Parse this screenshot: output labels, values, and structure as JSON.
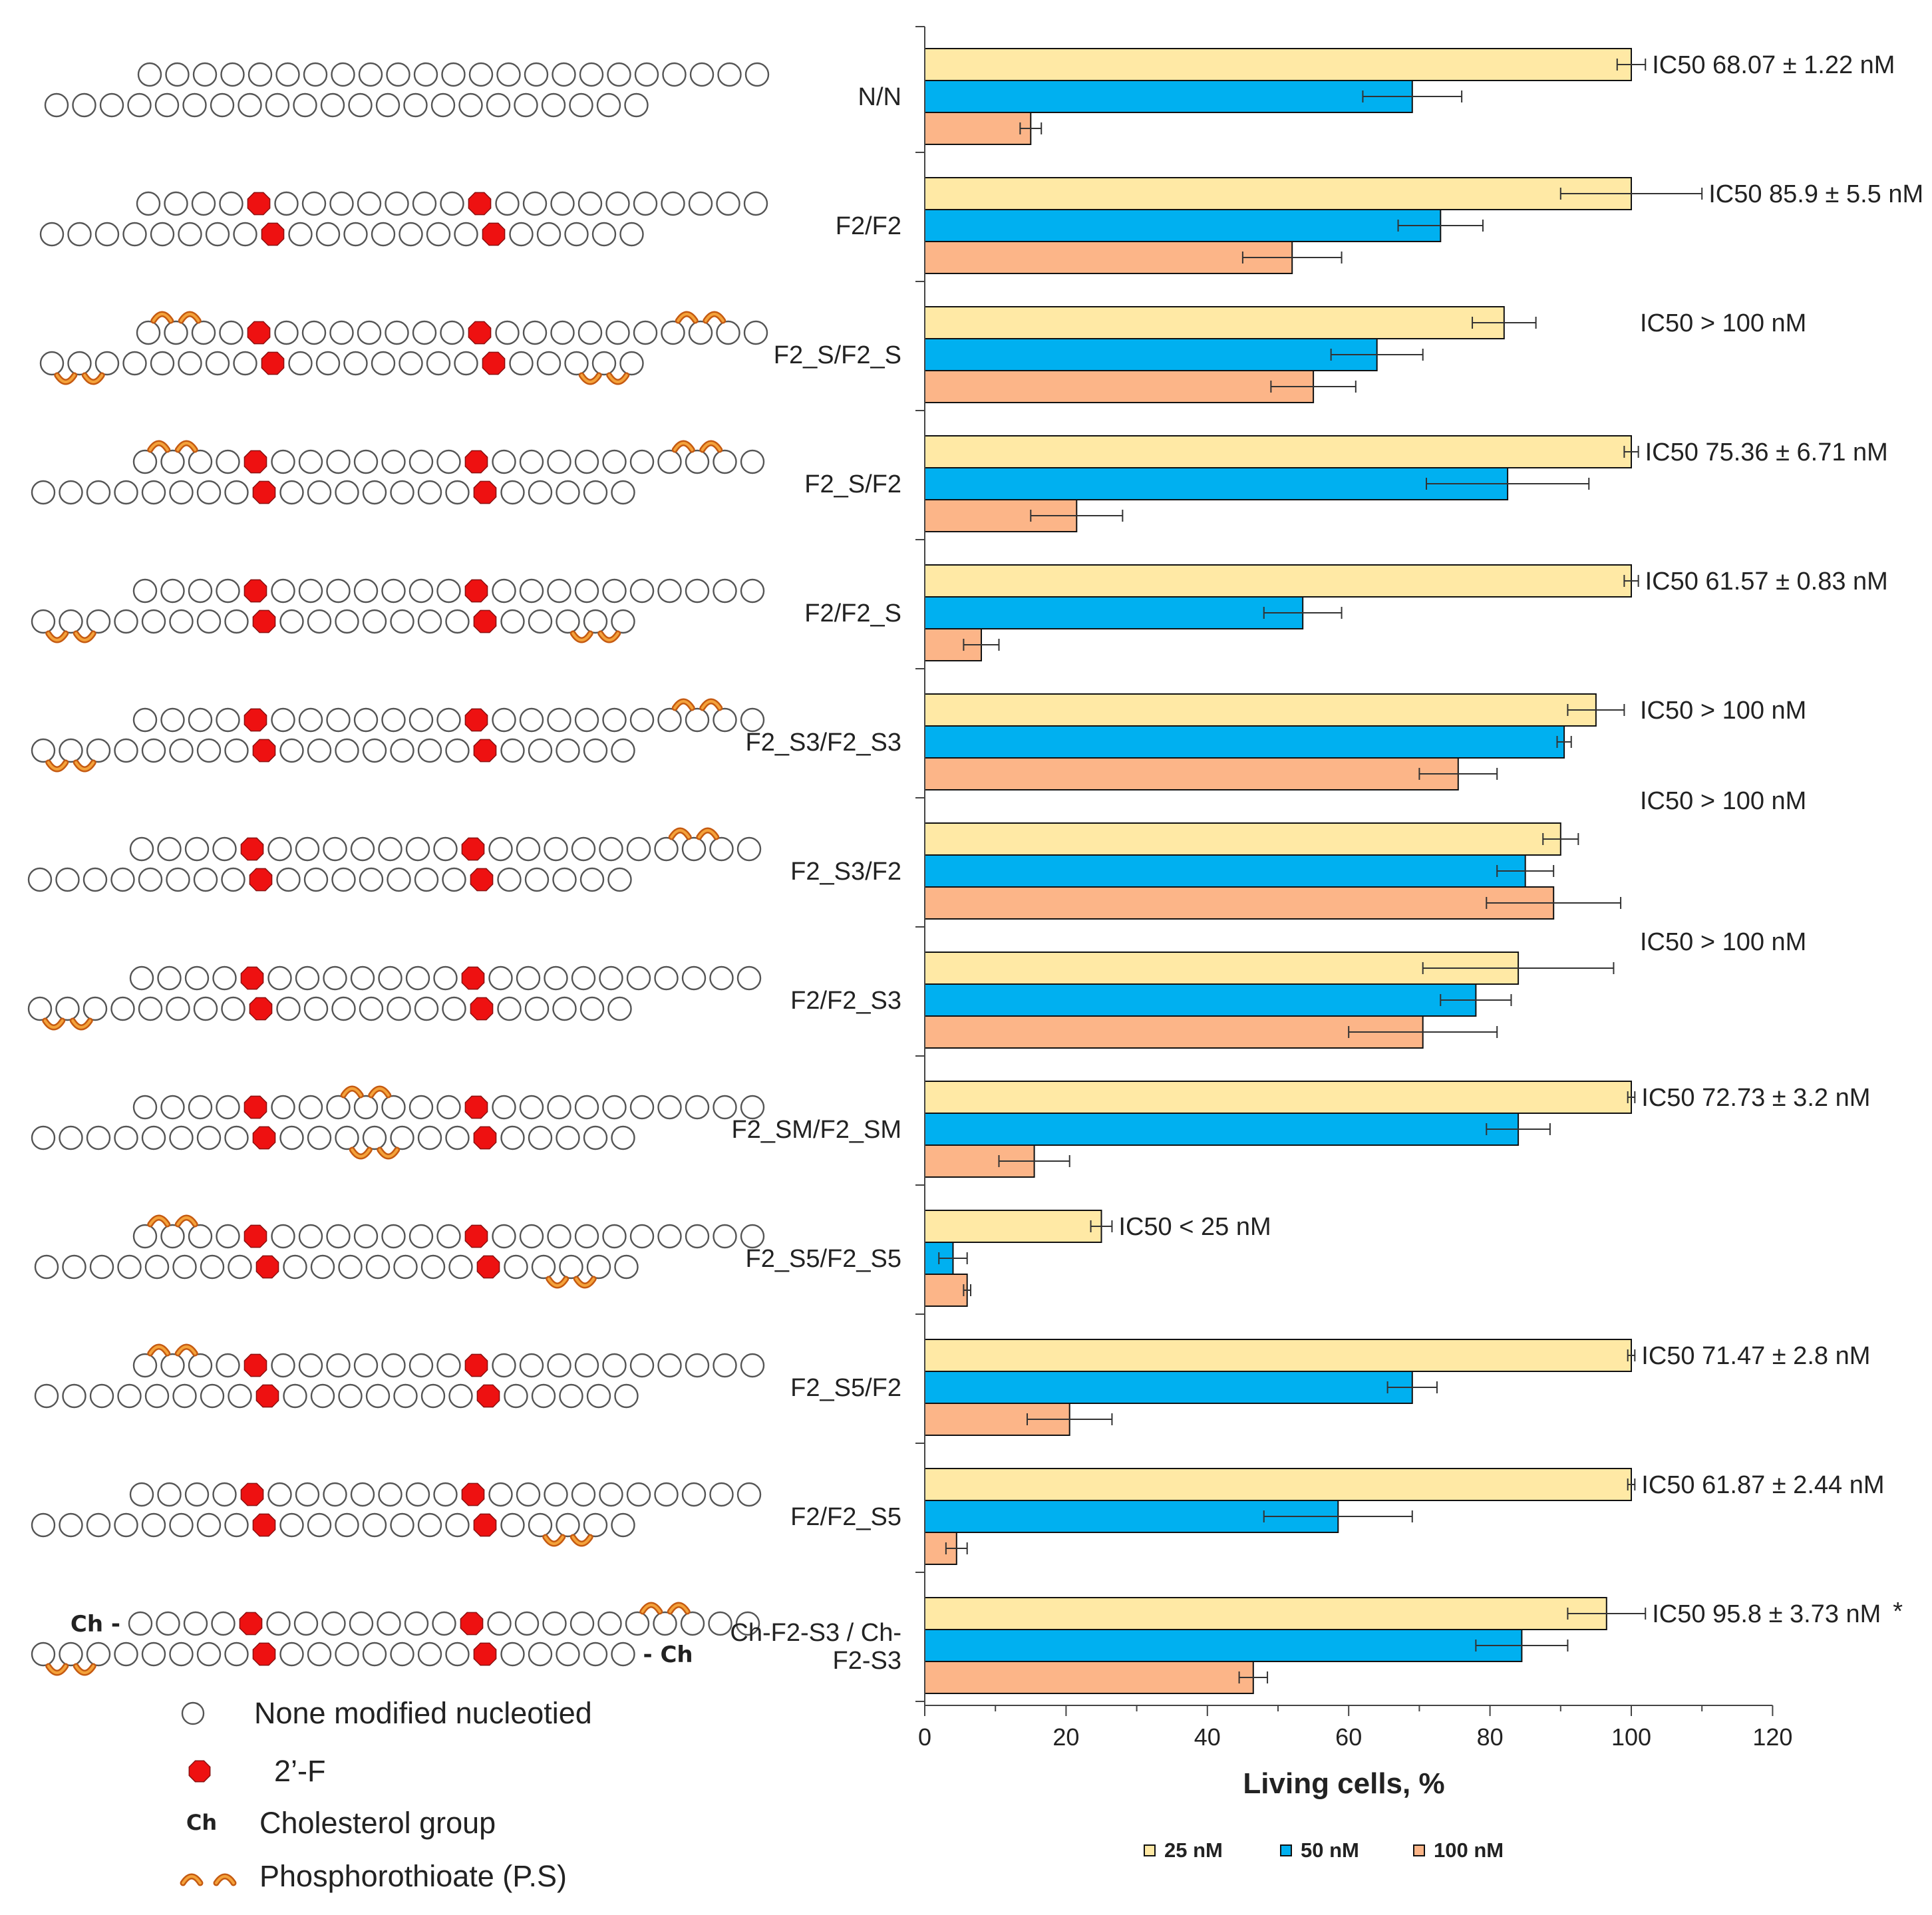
{
  "chart_data": {
    "type": "bar",
    "orientation": "horizontal",
    "xlabel": "Living cells, %",
    "xlim": [
      0,
      120
    ],
    "xticks": [
      "0",
      "20",
      "40",
      "60",
      "80",
      "100",
      "120"
    ],
    "categories": [
      "N/N",
      "F2/F2",
      "F2_S/F2_S",
      "F2_S/F2",
      "F2/F2_S",
      "F2_S3/F2_S3",
      "F2_S3/F2",
      "F2/F2_S3",
      "F2_SM/F2_SM",
      "F2_S5/F2_S5",
      "F2_S5/F2",
      "F2/F2_S5",
      "Ch-F2-S3 / Ch-F2-S3"
    ],
    "category_lines": [
      [
        "N/N"
      ],
      [
        "F2/F2"
      ],
      [
        "F2_S/F2_S"
      ],
      [
        "F2_S/F2"
      ],
      [
        "F2/F2_S"
      ],
      [
        "F2_S3/F2_S3"
      ],
      [
        "F2_S3/F2"
      ],
      [
        "F2/F2_S3"
      ],
      [
        "F2_SM/F2_SM"
      ],
      [
        "F2_S5/F2_S5"
      ],
      [
        "F2_S5/F2"
      ],
      [
        "F2/F2_S5"
      ],
      [
        "Ch-F2-S3 / Ch-",
        "F2-S3"
      ]
    ],
    "series": [
      {
        "name": "25 nM",
        "color": "#FFE9A5",
        "values": [
          100,
          100,
          82,
          100,
          100,
          95,
          90,
          84,
          100,
          25,
          100,
          100,
          96.5
        ],
        "errors": [
          2,
          10,
          4.5,
          1,
          1,
          4,
          2.5,
          13.5,
          0.5,
          1.5,
          0.5,
          0.5,
          5.5
        ]
      },
      {
        "name": "50 nM",
        "color": "#00B0F0",
        "values": [
          69,
          73,
          64,
          82.5,
          53.5,
          90.5,
          85,
          78,
          84,
          4,
          69,
          58.5,
          84.5
        ],
        "errors": [
          7,
          6,
          6.5,
          11.5,
          5.5,
          1,
          4,
          5,
          4.5,
          2,
          3.5,
          10.5,
          6.5
        ]
      },
      {
        "name": "100 nM",
        "color": "#FCB588",
        "values": [
          15,
          52,
          55,
          21.5,
          8,
          75.5,
          89,
          70.5,
          15.5,
          6,
          20.5,
          4.5,
          46.5
        ],
        "errors": [
          1.5,
          7,
          6,
          6.5,
          2.5,
          5.5,
          9.5,
          10.5,
          5,
          0.5,
          6,
          1.5,
          2
        ]
      }
    ],
    "annotations": [
      "IC50 68.07 ± 1.22 nM",
      "IC50 85.9 ± 5.5 nM",
      "IC50 > 100 nM",
      "IC50 75.36 ± 6.71 nM",
      "IC50 61.57 ± 0.83 nM",
      "IC50 > 100 nM",
      "IC50 > 100 nM",
      "IC50 > 100 nM",
      "IC50 72.73 ± 3.2 nM",
      "IC50 < 25 nM",
      "IC50 71.47 ± 2.8 nM",
      "IC50 61.87 ± 2.44 nM",
      "IC50 95.8 ± 3.73 nM"
    ],
    "footnote_mark": "*",
    "legend": [
      "25 nM",
      "50 nM",
      "100 nM"
    ],
    "legend_position": "bottom"
  },
  "schematic": {
    "ch_prefix": "Ch -",
    "ch_suffix": "- Ch",
    "legend": [
      {
        "symbol": "open-circle",
        "label": "None modified nucleotied"
      },
      {
        "symbol": "red-octagon",
        "label": "2’-F"
      },
      {
        "symbol": "Ch",
        "label": "Cholesterol group"
      },
      {
        "symbol": "arcs",
        "label": "Phosphorothioate (P.S)"
      }
    ],
    "duplexes": [
      {
        "top_mods": [],
        "top_ps": [],
        "bot_mods": [],
        "bot_ps": [],
        "ch": false
      },
      {
        "top_mods": [
          4,
          12
        ],
        "top_ps": [],
        "bot_mods": [
          8,
          16
        ],
        "bot_ps": [],
        "ch": false
      },
      {
        "top_mods": [
          4,
          12
        ],
        "top_ps": [
          [
            1,
            2
          ],
          [
            20,
            21
          ]
        ],
        "bot_mods": [
          8,
          16
        ],
        "bot_ps": [
          [
            1,
            2
          ],
          [
            20,
            21
          ]
        ],
        "ch": false
      },
      {
        "top_mods": [
          4,
          12
        ],
        "top_ps": [
          [
            1,
            2
          ],
          [
            20,
            21
          ]
        ],
        "bot_mods": [
          8,
          16
        ],
        "bot_ps": [],
        "ch": false
      },
      {
        "top_mods": [
          4,
          12
        ],
        "top_ps": [],
        "bot_mods": [
          8,
          16
        ],
        "bot_ps": [
          [
            1,
            2
          ],
          [
            20,
            21
          ]
        ],
        "ch": false
      },
      {
        "top_mods": [
          4,
          12
        ],
        "top_ps": [
          [
            20,
            21
          ]
        ],
        "bot_mods": [
          8,
          16
        ],
        "bot_ps": [
          [
            1,
            2
          ]
        ],
        "ch": false
      },
      {
        "top_mods": [
          4,
          12
        ],
        "top_ps": [
          [
            20,
            21
          ]
        ],
        "bot_mods": [
          8,
          16
        ],
        "bot_ps": [],
        "ch": false
      },
      {
        "top_mods": [
          4,
          12
        ],
        "top_ps": [],
        "bot_mods": [
          8,
          16
        ],
        "bot_ps": [
          [
            1,
            2
          ]
        ],
        "ch": false
      },
      {
        "top_mods": [
          4,
          12
        ],
        "top_ps": [
          [
            8,
            9
          ]
        ],
        "bot_mods": [
          8,
          16
        ],
        "bot_ps": [
          [
            12,
            13
          ]
        ],
        "ch": false
      },
      {
        "top_mods": [
          4,
          12
        ],
        "top_ps": [
          [
            1,
            2
          ]
        ],
        "bot_mods": [
          8,
          16
        ],
        "bot_ps": [
          [
            19,
            20
          ]
        ],
        "ch": false
      },
      {
        "top_mods": [
          4,
          12
        ],
        "top_ps": [
          [
            1,
            2
          ]
        ],
        "bot_mods": [
          8,
          16
        ],
        "bot_ps": [],
        "ch": false
      },
      {
        "top_mods": [
          4,
          12
        ],
        "top_ps": [],
        "bot_mods": [
          8,
          16
        ],
        "bot_ps": [
          [
            19,
            20
          ]
        ],
        "ch": false
      },
      {
        "top_mods": [
          4,
          12
        ],
        "top_ps": [
          [
            19,
            20
          ]
        ],
        "bot_mods": [
          8,
          16
        ],
        "bot_ps": [
          [
            1,
            2
          ]
        ],
        "ch": true
      }
    ]
  }
}
